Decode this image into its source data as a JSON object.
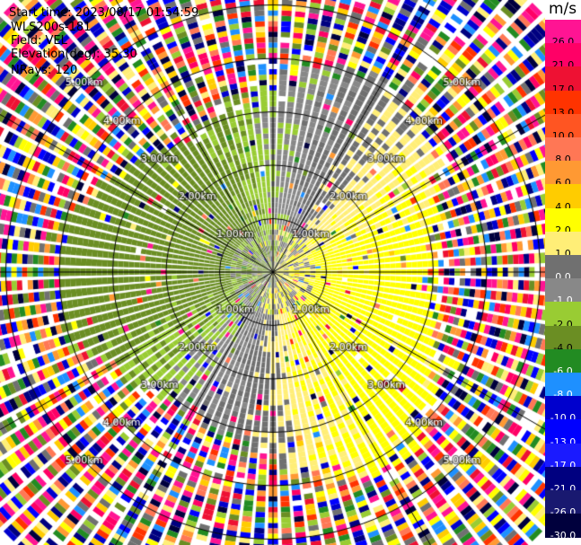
{
  "header": {
    "start_time": "Start time: 2023/08/17 01:54:59",
    "instrument": "WLS200s-181",
    "field": "Field: VEL",
    "elevation": "Elevation(deg): 35.30",
    "nrays": "NRays: 120"
  },
  "colorbar": {
    "unit": "m/s",
    "labels": [
      "26.0",
      "21.0",
      "17.0",
      "13.0",
      "10.0",
      "8.0",
      "6.0",
      "4.0",
      "2.0",
      "1.0",
      "0.0",
      "-1.0",
      "-2.0",
      "-4.0",
      "-6.0",
      "-8.0",
      "-10.0",
      "-13.0",
      "-17.0",
      "-21.0",
      "-26.0",
      "-30.0"
    ],
    "colors": [
      "#ff1493",
      "#ff0066",
      "#ee1133",
      "#ff3300",
      "#ff5522",
      "#ff7755",
      "#ff9933",
      "#ffcc00",
      "#ffff00",
      "#ffee77",
      "#707070",
      "#888888",
      "#99cc33",
      "#6b8e23",
      "#228b22",
      "#1e90ff",
      "#0000cd",
      "#0000ff",
      "#1a1aff",
      "#000080",
      "#191970",
      "#00003d"
    ]
  },
  "chart_data": {
    "type": "ppi",
    "field": "VEL",
    "units": "m/s",
    "nrays": 120,
    "elevation_deg": 35.3,
    "range_rings_km": [
      1,
      2,
      3,
      4,
      5
    ],
    "range_ring_labels": [
      "1.00km",
      "2.00km",
      "3.00km",
      "4.00km",
      "5.00km"
    ],
    "max_range_km": 7.0,
    "color_scale": [
      -30,
      -26,
      -21,
      -17,
      -13,
      -10,
      -8,
      -6,
      -4,
      -2,
      -1,
      0,
      1,
      2,
      4,
      6,
      8,
      10,
      13,
      17,
      21,
      26
    ],
    "grid": true
  }
}
